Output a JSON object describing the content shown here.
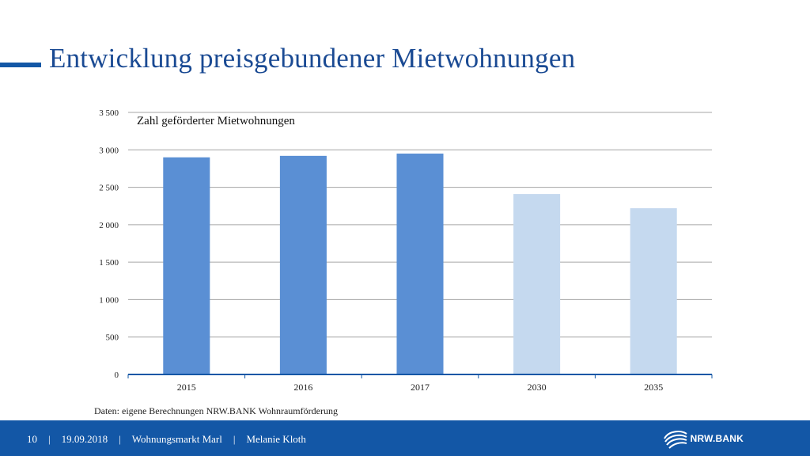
{
  "slide": {
    "title": "Entwicklung preisgebundener Mietwohnungen",
    "source": "Daten: eigene Berechnungen NRW.BANK Wohnraumförderung"
  },
  "footer": {
    "page": "10",
    "date": "19.09.2018",
    "event": "Wohnungsmarkt Marl",
    "author": "Melanie Kloth",
    "separator": "|",
    "logo_text": "NRW.BANK"
  },
  "colors": {
    "brand_blue": "#1357a6",
    "title_blue": "#1a4a93",
    "bar_actual": "#5a8fd4",
    "bar_forecast": "#c5d9ef",
    "grid": "#a6a6a6"
  },
  "chart_data": {
    "type": "bar",
    "title": "Zahl geförderter Mietwohnungen",
    "categories": [
      "2015",
      "2016",
      "2017",
      "2030",
      "2035"
    ],
    "values": [
      2900,
      2920,
      2950,
      2410,
      2220
    ],
    "bar_kind": [
      "actual",
      "actual",
      "actual",
      "forecast",
      "forecast"
    ],
    "ylim": [
      0,
      3500
    ],
    "yticks": [
      0,
      500,
      1000,
      1500,
      2000,
      2500,
      3000,
      3500
    ],
    "ytick_labels": [
      "0",
      "500",
      "1 000",
      "1 500",
      "2 000",
      "2 500",
      "3 000",
      "3 500"
    ],
    "xlabel": "",
    "ylabel": "",
    "grid": true,
    "legend": false
  }
}
